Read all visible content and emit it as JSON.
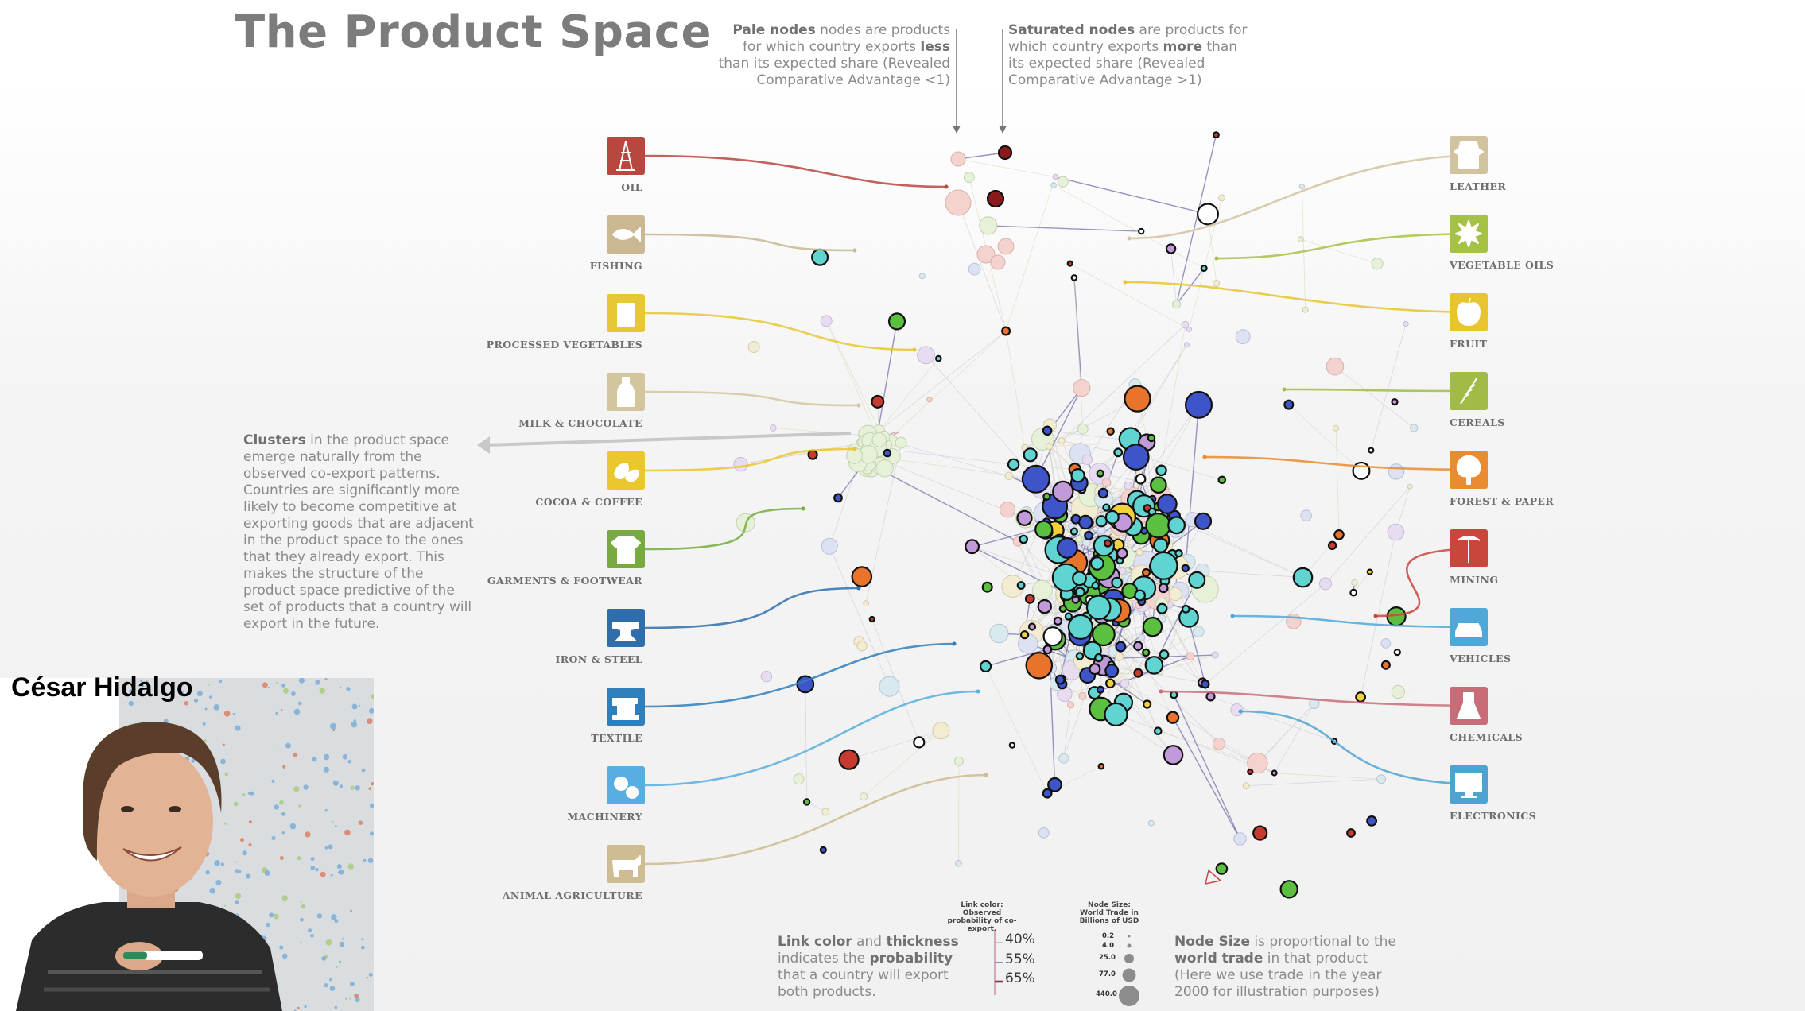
{
  "title": "The Product Space",
  "notes": {
    "pale": {
      "b1": "Pale nodes",
      "t1": " nodes are products for which country exports ",
      "b2": "less",
      "t2": " than its expected share (Revealed Comparative Advantage <1)"
    },
    "saturated": {
      "b1": "Saturated nodes",
      "t1": " are products for which country exports ",
      "b2": "more",
      "t2": " than its expected share (Revealed Comparative Advantage >1)"
    },
    "clusters": {
      "b1": "Clusters",
      "t1": " in the product space emerge naturally from the observed co-export patterns. Countries are significantly more likely to become competitive at exporting goods that are adjacent in the product space to the ones that they already export. This makes the structure of the product space predictive of the set of products that a country will export in the future."
    },
    "link": {
      "b1": "Link color",
      "t1": " and ",
      "b2": "thickness",
      "t2": " indicates the ",
      "b3": "probability",
      "t3": " that a country will export both products."
    },
    "size": {
      "b1": "Node Size",
      "t1": " is proportional to the ",
      "b2": "world trade",
      "t2": " in that product (Here we use trade in the year 2000 for illustration purposes)"
    }
  },
  "left_categories": [
    {
      "label": "OIL",
      "color": "#b8473f",
      "icon": "oil-derrick-icon"
    },
    {
      "label": "FISHING",
      "color": "#c9b891",
      "icon": "fish-icon"
    },
    {
      "label": "PROCESSED VEGETABLES",
      "color": "#e8c735",
      "icon": "can-icon"
    },
    {
      "label": "MILK & CHOCOLATE",
      "color": "#d3c59e",
      "icon": "bottle-icon"
    },
    {
      "label": "COCOA & COFFEE",
      "color": "#eac72d",
      "icon": "coffee-bean-icon"
    },
    {
      "label": "GARMENTS & FOOTWEAR",
      "color": "#78ab3f",
      "icon": "shirt-icon"
    },
    {
      "label": "IRON & STEEL",
      "color": "#2f6eab",
      "icon": "anvil-icon"
    },
    {
      "label": "TEXTILE",
      "color": "#2f7fbd",
      "icon": "sewing-machine-icon"
    },
    {
      "label": "MACHINERY",
      "color": "#58aee0",
      "icon": "gears-icon"
    },
    {
      "label": "ANIMAL AGRICULTURE",
      "color": "#cebc92",
      "icon": "cow-icon"
    }
  ],
  "right_categories": [
    {
      "label": "LEATHER",
      "color": "#d2c3a0",
      "icon": "hide-icon"
    },
    {
      "label": "VEGETABLE OILS",
      "color": "#a6c245",
      "icon": "sunflower-icon"
    },
    {
      "label": "FRUIT",
      "color": "#e8c430",
      "icon": "apple-icon"
    },
    {
      "label": "CEREALS",
      "color": "#a2bb47",
      "icon": "wheat-icon"
    },
    {
      "label": "FOREST & PAPER",
      "color": "#e98b30",
      "icon": "tree-icon"
    },
    {
      "label": "MINING",
      "color": "#c8463c",
      "icon": "pickaxe-icon"
    },
    {
      "label": "VEHICLES",
      "color": "#4fa8d8",
      "icon": "car-icon"
    },
    {
      "label": "CHEMICALS",
      "color": "#c86d78",
      "icon": "flask-icon"
    },
    {
      "label": "ELECTRONICS",
      "color": "#4fa3d1",
      "icon": "monitor-icon"
    }
  ],
  "legend": {
    "link_heading": "Link color: Observed probability of co-export.",
    "link_values": [
      "40%",
      "55%",
      "65%"
    ],
    "size_heading": "Node Size: World Trade in Billions of USD",
    "size_values": [
      "0.2",
      "4.0",
      "25.0",
      "77.0",
      "440.0"
    ]
  },
  "person": {
    "name": "César Hidalgo"
  },
  "colors": {
    "title": "#7c7c7c",
    "node_cyan": "#5fd4d0",
    "node_blue": "#3d55c9",
    "node_green": "#5bbf3f",
    "node_purple": "#c39ad9",
    "node_orange": "#e8742c",
    "node_red": "#c63b2f"
  }
}
